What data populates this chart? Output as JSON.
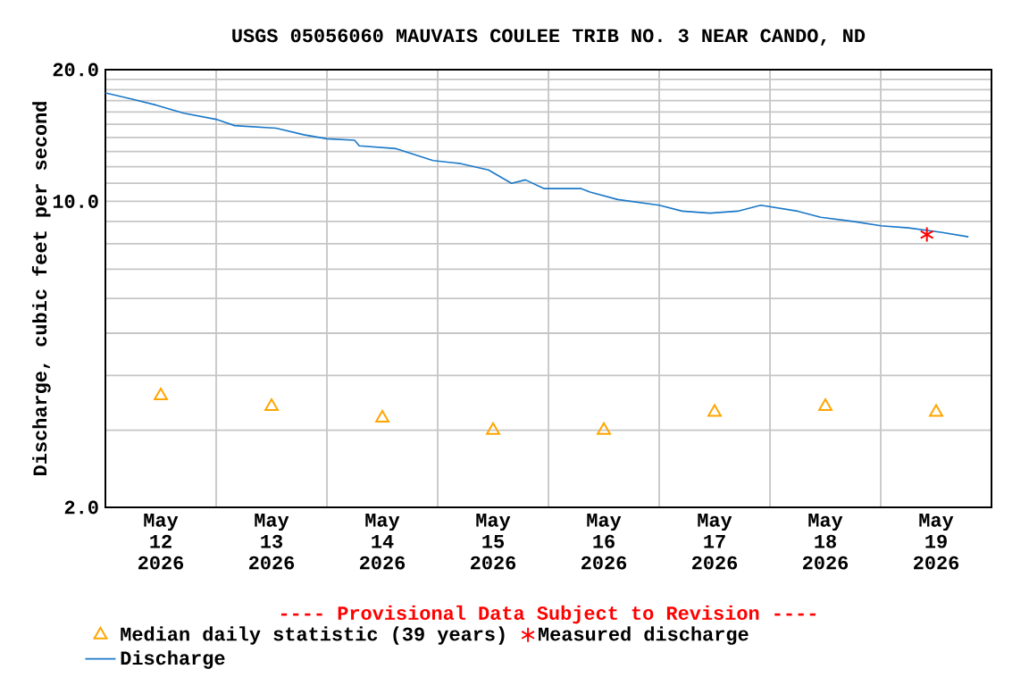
{
  "chart_data": {
    "type": "line",
    "title": "USGS 05056060 MAUVAIS COULEE TRIB NO. 3 NEAR CANDO, ND",
    "ylabel": "Discharge, cubic feet per second",
    "annotations": [
      "---- Provisional Data Subject to Revision ----"
    ],
    "xlim": [
      "2026-05-12T00:00",
      "2026-05-20T00:00"
    ],
    "xticks": [
      {
        "value": "2026-05-12T00:00",
        "label": null
      },
      {
        "value": "2026-05-13T00:00",
        "label": null
      },
      {
        "value": "2026-05-14T00:00",
        "label": null
      },
      {
        "value": "2026-05-15T00:00",
        "label": null
      },
      {
        "value": "2026-05-16T00:00",
        "label": null
      },
      {
        "value": "2026-05-17T00:00",
        "label": null
      },
      {
        "value": "2026-05-18T00:00",
        "label": null
      },
      {
        "value": "2026-05-19T00:00",
        "label": null
      },
      {
        "value": "2026-05-20T00:00",
        "label": null
      },
      {
        "value": "2026-05-12T12:00",
        "label": "May 12 2026"
      },
      {
        "value": "2026-05-13T12:00",
        "label": "May 13 2026"
      },
      {
        "value": "2026-05-14T12:00",
        "label": "May 14 2026"
      },
      {
        "value": "2026-05-15T12:00",
        "label": "May 15 2026"
      },
      {
        "value": "2026-05-16T12:00",
        "label": "May 16 2026"
      },
      {
        "value": "2026-05-17T12:00",
        "label": "May 17 2026"
      },
      {
        "value": "2026-05-18T12:00",
        "label": "May 18 2026"
      },
      {
        "value": "2026-05-19T12:00",
        "label": "May 19 2026"
      }
    ],
    "ylim": [
      2,
      20
    ],
    "yticks": [
      {
        "value": 2,
        "label": "2.0"
      },
      {
        "value": 3,
        "label": null
      },
      {
        "value": 4,
        "label": null
      },
      {
        "value": 5,
        "label": null
      },
      {
        "value": 6,
        "label": null
      },
      {
        "value": 7,
        "label": null
      },
      {
        "value": 8,
        "label": null
      },
      {
        "value": 9,
        "label": null
      },
      {
        "value": 10,
        "label": "10.0"
      },
      {
        "value": 11,
        "label": null
      },
      {
        "value": 12,
        "label": null
      },
      {
        "value": 13,
        "label": null
      },
      {
        "value": 14,
        "label": null
      },
      {
        "value": 15,
        "label": null
      },
      {
        "value": 16,
        "label": null
      },
      {
        "value": 17,
        "label": null
      },
      {
        "value": 18,
        "label": null
      },
      {
        "value": 19,
        "label": null
      },
      {
        "value": 20,
        "label": "20.0"
      }
    ],
    "log": "y",
    "grid": true,
    "legend": "bottom",
    "series": [
      {
        "name": "Median daily statistic (39 years)",
        "type": "scatter",
        "marker": "triangle",
        "color": "#ffa500",
        "x": [
          "2026-05-12T12:00",
          "2026-05-13T12:00",
          "2026-05-14T12:00",
          "2026-05-15T12:00",
          "2026-05-16T12:00",
          "2026-05-17T12:00",
          "2026-05-18T12:00",
          "2026-05-19T12:00"
        ],
        "values": [
          3.6,
          3.4,
          3.2,
          3.0,
          3.0,
          3.3,
          3.4,
          3.3
        ]
      },
      {
        "name": "Measured discharge",
        "type": "scatter",
        "marker": "cross",
        "color": "#ff0000",
        "x": [
          "2026-05-19T10:00"
        ],
        "values": [
          8.4
        ]
      },
      {
        "name": "Discharge",
        "color": "#1a78c8",
        "x": [
          "2026-05-12T00:00",
          "2026-05-12T06:00",
          "2026-05-12T11:00",
          "2026-05-12T17:00",
          "2026-05-13T00:00",
          "2026-05-13T04:00",
          "2026-05-13T13:00",
          "2026-05-13T19:00",
          "2026-05-14T00:00",
          "2026-05-14T06:00",
          "2026-05-14T07:00",
          "2026-05-14T15:00",
          "2026-05-14T23:00",
          "2026-05-15T05:00",
          "2026-05-15T11:00",
          "2026-05-15T16:00",
          "2026-05-15T19:00",
          "2026-05-15T23:00",
          "2026-05-16T07:00",
          "2026-05-16T09:00",
          "2026-05-16T15:00",
          "2026-05-17T00:00",
          "2026-05-17T05:00",
          "2026-05-17T11:00",
          "2026-05-17T17:00",
          "2026-05-17T22:00",
          "2026-05-18T06:00",
          "2026-05-18T11:00",
          "2026-05-18T18:00",
          "2026-05-19T00:00",
          "2026-05-19T06:00",
          "2026-05-19T13:00",
          "2026-05-19T19:00"
        ],
        "values": [
          17.7,
          17.1,
          16.6,
          15.9,
          15.4,
          14.9,
          14.7,
          14.2,
          13.9,
          13.8,
          13.4,
          13.2,
          12.4,
          12.2,
          11.8,
          11.0,
          11.2,
          10.7,
          10.7,
          10.5,
          10.1,
          9.8,
          9.5,
          9.4,
          9.5,
          9.8,
          9.5,
          9.2,
          9.0,
          8.8,
          8.7,
          8.5,
          8.3
        ]
      }
    ]
  }
}
